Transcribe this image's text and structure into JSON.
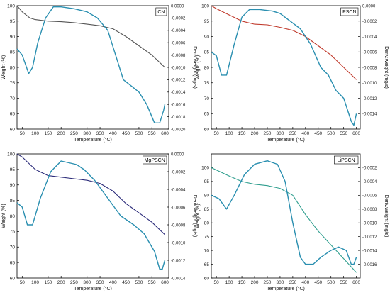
{
  "colors": {
    "deriv": "#2a8fb0",
    "weight": [
      "#555555",
      "#c0392b",
      "#2c2c7a",
      "#2f9e8e"
    ]
  },
  "chart_data": [
    {
      "type": "line",
      "legend_label": "CN",
      "xlabel": "Temperature (°C)",
      "ylabel": "Weight (%)",
      "ylabel2": "Deriv.weight (mg/s)",
      "xlim": [
        30,
        615
      ],
      "ylim": [
        60,
        100
      ],
      "ylim2": [
        -0.002,
        0.0
      ],
      "xticks": [
        50,
        100,
        150,
        200,
        250,
        300,
        350,
        400,
        450,
        500,
        550,
        600
      ],
      "yticks": [
        60,
        65,
        70,
        75,
        80,
        85,
        90,
        95,
        100
      ],
      "yticks2": [
        0.0,
        -0.0002,
        -0.0004,
        -0.0006,
        -0.0008,
        -0.001,
        -0.0012,
        -0.0014,
        -0.0016,
        -0.0018,
        -0.002
      ],
      "ytick2_labels": [
        "0.0000",
        "-0.0002",
        "-0.0004",
        "-0.0006",
        "-0.0008",
        "-0.0010",
        "-0.0012",
        "-0.0014",
        "-0.0016",
        "-0.0018",
        "-0.0020"
      ],
      "series": [
        {
          "axis": "left",
          "x": [
            30,
            50,
            80,
            100,
            150,
            200,
            250,
            300,
            350,
            400,
            450,
            500,
            550,
            600
          ],
          "y": [
            100,
            98,
            96,
            95.5,
            95,
            94.8,
            94.5,
            94,
            93.5,
            92.5,
            90,
            87,
            84,
            80
          ]
        },
        {
          "axis": "right",
          "x": [
            30,
            50,
            75,
            90,
            110,
            140,
            170,
            200,
            250,
            300,
            340,
            380,
            410,
            440,
            470,
            500,
            530,
            560,
            580,
            595,
            600
          ],
          "y": [
            -0.0007,
            -0.0008,
            -0.0011,
            -0.001,
            -0.0006,
            -0.0002,
            -2e-05,
            -2e-05,
            -5e-05,
            -0.0001,
            -0.0002,
            -0.0004,
            -0.0008,
            -0.0012,
            -0.0013,
            -0.0014,
            -0.0016,
            -0.0019,
            -0.0019,
            -0.0017,
            -0.0016
          ]
        }
      ]
    },
    {
      "type": "line",
      "legend_label": "PSCN",
      "xlabel": "Temperature (°C)",
      "ylabel": "Weight (%)",
      "ylabel2": "Deriv.weight (mg/s)",
      "xlim": [
        30,
        615
      ],
      "ylim": [
        60,
        100
      ],
      "ylim2": [
        -0.0016,
        0.0
      ],
      "xticks": [
        50,
        100,
        150,
        200,
        250,
        300,
        350,
        400,
        450,
        500,
        550,
        600
      ],
      "yticks": [
        60,
        65,
        70,
        75,
        80,
        85,
        90,
        95,
        100
      ],
      "yticks2": [
        0.0,
        -0.0002,
        -0.0004,
        -0.0006,
        -0.0008,
        -0.001,
        -0.0012,
        -0.0014
      ],
      "ytick2_labels": [
        "0.0000",
        "-0.0002",
        "-0.0004",
        "-0.0006",
        "-0.0008",
        "-0.0010",
        "-0.0012",
        "-0.0014"
      ],
      "series": [
        {
          "axis": "left",
          "x": [
            30,
            50,
            100,
            150,
            200,
            250,
            300,
            350,
            400,
            450,
            500,
            550,
            600
          ],
          "y": [
            100,
            99,
            97,
            95,
            94,
            93.8,
            93,
            92,
            90,
            87,
            84,
            80,
            76
          ]
        },
        {
          "axis": "right",
          "x": [
            30,
            50,
            70,
            90,
            120,
            150,
            180,
            220,
            270,
            300,
            340,
            380,
            420,
            460,
            490,
            520,
            550,
            580,
            590,
            600
          ],
          "y": [
            -0.0006,
            -0.00065,
            -0.0009,
            -0.0009,
            -0.0005,
            -0.00015,
            -5e-05,
            -5e-05,
            -7e-05,
            -0.0001,
            -0.0002,
            -0.0003,
            -0.0005,
            -0.0008,
            -0.0009,
            -0.0011,
            -0.0012,
            -0.0015,
            -0.00155,
            -0.0014
          ]
        }
      ]
    },
    {
      "type": "line",
      "legend_label": "MgPSCN",
      "xlabel": "Temperature (°C)",
      "ylabel": "Weight (%)",
      "ylabel2": "Deriv.weight (mg/s)",
      "xlim": [
        30,
        615
      ],
      "ylim": [
        60,
        100
      ],
      "ylim2": [
        -0.0014,
        0.0
      ],
      "xticks": [
        50,
        100,
        150,
        200,
        250,
        300,
        350,
        400,
        450,
        500,
        550,
        600
      ],
      "yticks": [
        60,
        65,
        70,
        75,
        80,
        85,
        90,
        95,
        100
      ],
      "yticks2": [
        0.0,
        -0.0002,
        -0.0004,
        -0.0006,
        -0.0008,
        -0.001,
        -0.0012,
        -0.0014
      ],
      "ytick2_labels": [
        "0.0000",
        "-0.0002",
        "-0.0004",
        "-0.0006",
        "-0.0008",
        "-0.0010",
        "-0.0012",
        "-0.0014"
      ],
      "series": [
        {
          "axis": "left",
          "x": [
            30,
            50,
            100,
            150,
            200,
            250,
            300,
            350,
            400,
            450,
            500,
            550,
            600
          ],
          "y": [
            100,
            99,
            95,
            93,
            92.5,
            92,
            91.5,
            90.5,
            88,
            84,
            81,
            78,
            74
          ]
        },
        {
          "axis": "right",
          "x": [
            30,
            50,
            70,
            90,
            120,
            160,
            200,
            230,
            260,
            290,
            330,
            380,
            430,
            480,
            520,
            560,
            580,
            590,
            600
          ],
          "y": [
            -0.00055,
            -0.0006,
            -0.0008,
            -0.0008,
            -0.0005,
            -0.0002,
            -8e-05,
            -0.0001,
            -0.00012,
            -0.00018,
            -0.0003,
            -0.0005,
            -0.0007,
            -0.0008,
            -0.0009,
            -0.0011,
            -0.0013,
            -0.0013,
            -0.0012
          ]
        }
      ]
    },
    {
      "type": "line",
      "legend_label": "LiPSCN",
      "xlabel": "Temperature (°C)",
      "ylabel": "Weight (%)",
      "ylabel2": "Deriv.weight (mg/s)",
      "xlim": [
        30,
        615
      ],
      "ylim": [
        60,
        105
      ],
      "ylim2": [
        -0.0018,
        0.0
      ],
      "xticks": [
        50,
        100,
        150,
        200,
        250,
        300,
        350,
        400,
        450,
        500,
        550,
        600
      ],
      "yticks": [
        60,
        65,
        70,
        75,
        80,
        85,
        90,
        95,
        100
      ],
      "yticks2": [
        -0.0002,
        -0.0004,
        -0.0006,
        -0.0008,
        -0.001,
        -0.0012,
        -0.0014,
        -0.0016
      ],
      "ytick2_labels": [
        "-0.0002",
        "-0.0004",
        "-0.0006",
        "-0.0008",
        "-0.0010",
        "-0.0012",
        "-0.0014",
        "-0.0016"
      ],
      "series": [
        {
          "axis": "left",
          "x": [
            30,
            100,
            150,
            200,
            250,
            300,
            350,
            400,
            450,
            500,
            550,
            600
          ],
          "y": [
            100,
            97,
            95,
            94,
            93.5,
            92.5,
            90,
            83,
            77,
            72,
            67,
            62
          ]
        },
        {
          "axis": "right",
          "x": [
            30,
            60,
            90,
            120,
            160,
            200,
            250,
            290,
            320,
            350,
            380,
            400,
            430,
            460,
            500,
            530,
            560,
            580,
            590,
            600
          ],
          "y": [
            -0.0006,
            -0.00065,
            -0.0008,
            -0.0006,
            -0.0003,
            -0.00015,
            -0.0001,
            -0.00015,
            -0.0004,
            -0.001,
            -0.0015,
            -0.0016,
            -0.0016,
            -0.0015,
            -0.0014,
            -0.00135,
            -0.0014,
            -0.0016,
            -0.0016,
            -0.0015
          ]
        }
      ]
    }
  ]
}
